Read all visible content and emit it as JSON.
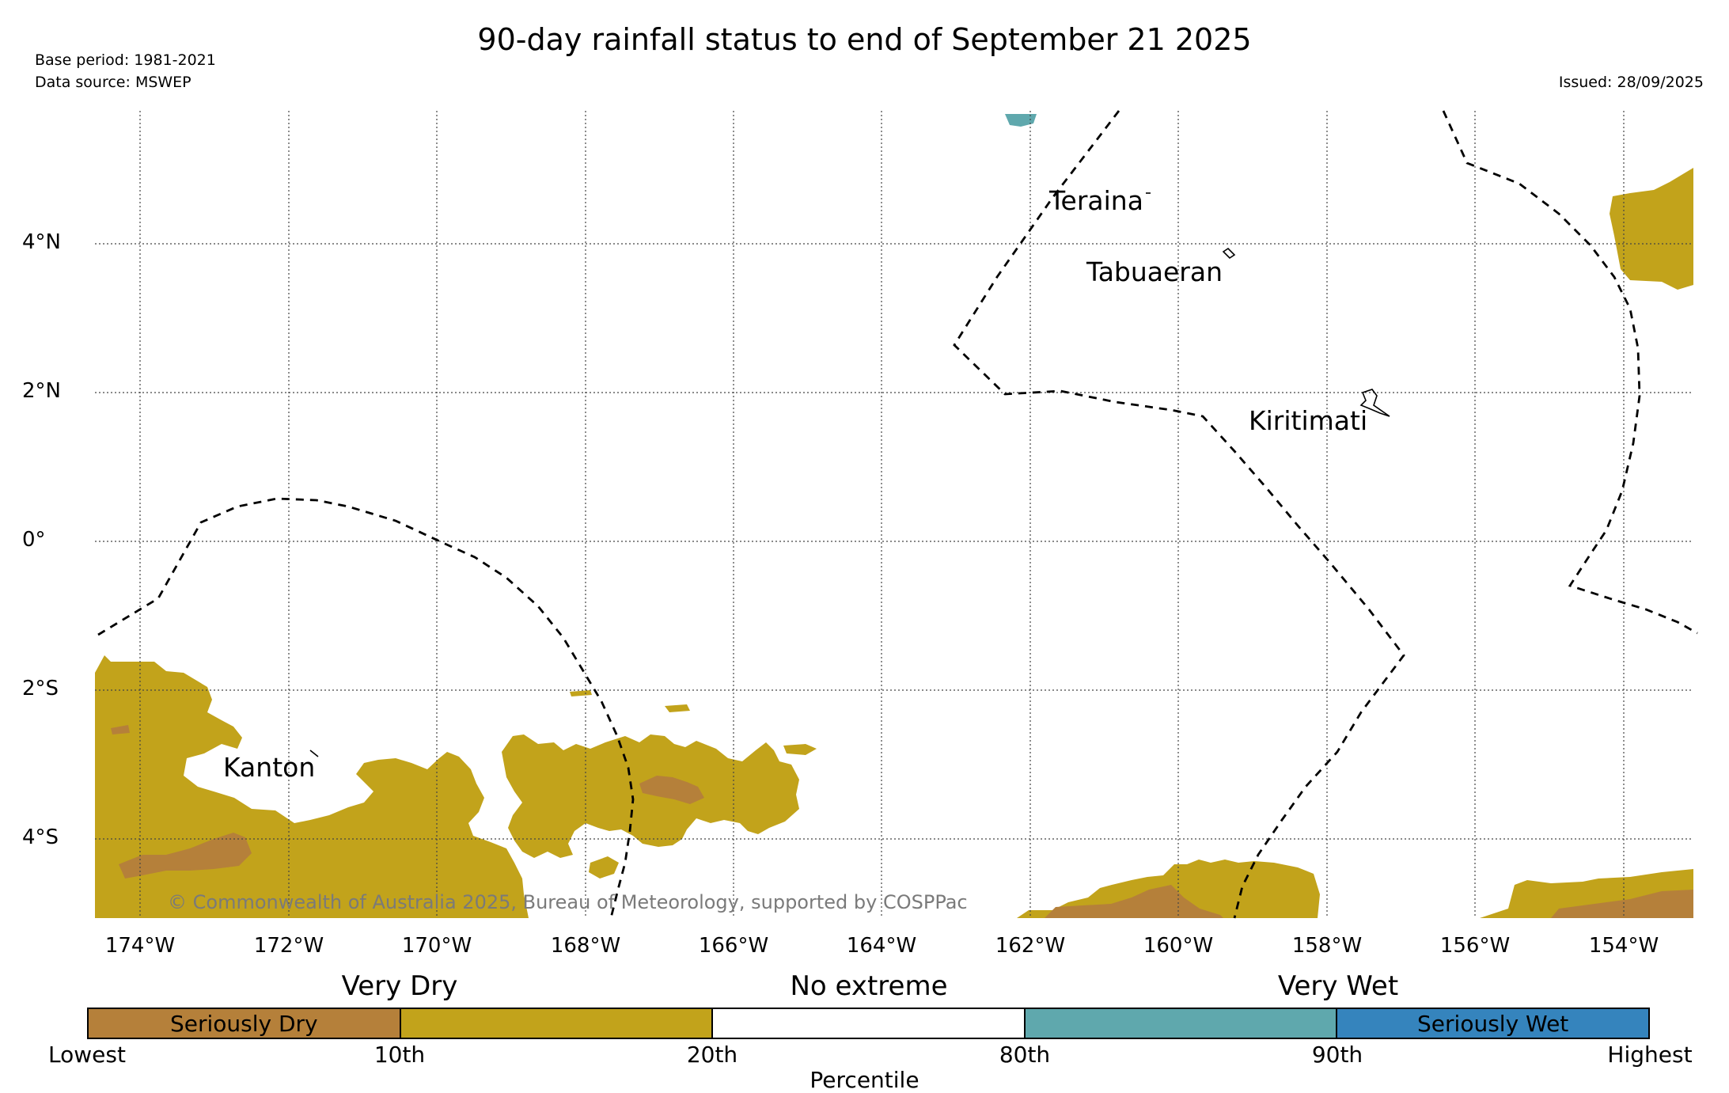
{
  "header": {
    "title": "90-day rainfall status to end of September 21 2025",
    "base_period": "Base period: 1981-2021",
    "data_source": "Data source: MSWEP",
    "issued": "Issued: 28/09/2025"
  },
  "axes": {
    "lat_labels": [
      "4°N",
      "2°N",
      "0°",
      "2°S",
      "4°S"
    ],
    "lon_labels": [
      "174°W",
      "172°W",
      "170°W",
      "168°W",
      "166°W",
      "164°W",
      "162°W",
      "160°W",
      "158°W",
      "156°W",
      "154°W"
    ]
  },
  "places": {
    "teraina": "Teraina",
    "tabuaeran": "Tabuaeran",
    "kiritimati": "Kiritimati",
    "kanton": "Kanton"
  },
  "copyright": "© Commonwealth of Australia 2025, Bureau of Meteorology, supported by COSPPac",
  "legend": {
    "categories": {
      "very_dry": "Very Dry",
      "no_extreme": "No extreme",
      "very_wet": "Very Wet"
    },
    "segments": [
      {
        "label": "Seriously Dry",
        "color": "#b5803a"
      },
      {
        "label": "",
        "color": "#c2a31b"
      },
      {
        "label": "",
        "color": "#ffffff"
      },
      {
        "label": "",
        "color": "#5fa8ad"
      },
      {
        "label": "Seriously Wet",
        "color": "#3584bd"
      }
    ],
    "percentile_ticks": [
      "Lowest",
      "10th",
      "20th",
      "80th",
      "90th",
      "Highest"
    ],
    "axis_label": "Percentile"
  },
  "colors": {
    "seriously_dry": "#b5803a",
    "very_dry": "#c2a31b",
    "very_wet": "#5fa8ad",
    "seriously_wet": "#3584bd"
  }
}
